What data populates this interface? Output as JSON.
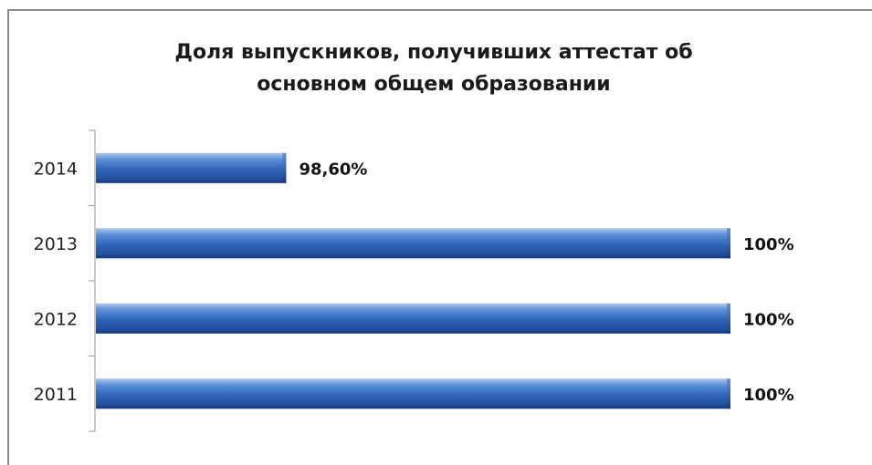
{
  "chart_data": {
    "type": "bar",
    "orientation": "horizontal",
    "title": "Доля выпускников, получивших аттестат об основном общем образовании",
    "title_lines": [
      "Доля выпускников, получивших аттестат об",
      "основном общем образовании"
    ],
    "categories": [
      "2014",
      "2013",
      "2012",
      "2011"
    ],
    "values": [
      98.6,
      100,
      100,
      100
    ],
    "data_labels": [
      "98,60%",
      "100%",
      "100%",
      "100%"
    ],
    "xlim": [
      98.0,
      100.0
    ],
    "grid": false,
    "legend": "none",
    "bar_color": "#3a6fc4"
  }
}
